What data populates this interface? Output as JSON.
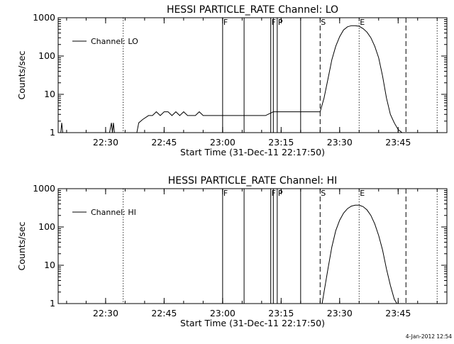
{
  "footer_stamp": "4-Jan-2012 12:54",
  "chart_data": [
    {
      "type": "line",
      "title": "HESSI PARTICLE_RATE Channel: LO",
      "xlabel": "Start Time (31-Dec-11 22:17:50)",
      "ylabel": "Counts/sec",
      "yscale": "log",
      "ylim": [
        1,
        1000
      ],
      "yticks": [
        "1",
        "10",
        "100",
        "1000"
      ],
      "xlim": [
        "22:17:50",
        "23:57:30"
      ],
      "xticks": [
        "22:30",
        "22:45",
        "23:00",
        "23:15",
        "23:30",
        "23:45"
      ],
      "grid": false,
      "legend": "upper-left",
      "series": [
        {
          "name": "Channel: LO",
          "x": [
            "22:18:30",
            "22:18:45",
            "22:19:00",
            "22:19:15",
            "22:19:35",
            "22:25:00",
            "22:28:00",
            "22:31:00",
            "22:31:30",
            "22:31:45",
            "22:32:00",
            "22:32:15",
            "22:32:45",
            "22:33:30",
            "22:35:00",
            "22:36:30",
            "22:38:00",
            "22:38:30",
            "22:39:30",
            "22:41:00",
            "22:42:00",
            "22:43:00",
            "22:44:00",
            "22:45:00",
            "22:46:00",
            "22:47:00",
            "22:48:00",
            "22:49:00",
            "22:50:00",
            "22:51:00",
            "22:52:00",
            "22:53:00",
            "22:54:00",
            "22:55:00",
            "22:56:00",
            "22:58:00",
            "23:00:00",
            "23:03:00",
            "23:05:00",
            "23:07:00",
            "23:09:00",
            "23:11:00",
            "23:13:00",
            "23:15:00",
            "23:17:00",
            "23:19:00",
            "23:21:00",
            "23:23:00",
            "23:25:00",
            "23:26:00",
            "23:27:00",
            "23:28:00",
            "23:29:00",
            "23:30:00",
            "23:31:00",
            "23:32:00",
            "23:33:00",
            "23:34:00",
            "23:35:00",
            "23:36:00",
            "23:37:00",
            "23:38:00",
            "23:39:00",
            "23:40:00",
            "23:41:00",
            "23:42:00",
            "23:43:00",
            "23:44:00",
            "23:45:00",
            "23:46:00",
            "23:47:00"
          ],
          "y": [
            1,
            1.8,
            1,
            1,
            1,
            1,
            1,
            1,
            1.8,
            1,
            1.8,
            1,
            1,
            1,
            1,
            1,
            1,
            1.8,
            2.2,
            2.8,
            2.8,
            3.5,
            2.8,
            3.5,
            3.5,
            2.8,
            3.5,
            2.8,
            3.5,
            2.8,
            2.8,
            2.8,
            3.5,
            2.8,
            2.8,
            2.8,
            2.8,
            2.8,
            2.8,
            2.8,
            2.8,
            2.8,
            3.5,
            3.5,
            3.5,
            3.5,
            3.5,
            3.5,
            3.5,
            8,
            25,
            80,
            180,
            320,
            480,
            580,
            620,
            620,
            600,
            520,
            420,
            300,
            180,
            90,
            30,
            8,
            3,
            1.8,
            1.2,
            1,
            1
          ]
        }
      ],
      "markers": [
        {
          "label": "F",
          "time": "23:00:00",
          "style": "solid"
        },
        {
          "label": "",
          "time": "23:05:30",
          "style": "solid"
        },
        {
          "label": "F",
          "time": "23:12:20",
          "style": "solid"
        },
        {
          "label": "",
          "time": "23:13:00",
          "style": "solid"
        },
        {
          "label": "P",
          "time": "23:14:00",
          "style": "solid"
        },
        {
          "label": "",
          "time": "23:20:00",
          "style": "solid"
        },
        {
          "label": "S",
          "time": "23:25:00",
          "style": "dashed"
        },
        {
          "label": "",
          "time": "23:47:00",
          "style": "dashed"
        },
        {
          "label": "",
          "time": "22:34:30",
          "style": "dotted"
        },
        {
          "label": "E",
          "time": "23:35:00",
          "style": "dotted"
        },
        {
          "label": "",
          "time": "23:55:00",
          "style": "dotted"
        }
      ]
    },
    {
      "type": "line",
      "title": "HESSI PARTICLE_RATE Channel: HI",
      "xlabel": "Start Time (31-Dec-11 22:17:50)",
      "ylabel": "Counts/sec",
      "yscale": "log",
      "ylim": [
        1,
        1000
      ],
      "yticks": [
        "1",
        "10",
        "100",
        "1000"
      ],
      "xlim": [
        "22:17:50",
        "23:57:30"
      ],
      "xticks": [
        "22:30",
        "22:45",
        "23:00",
        "23:15",
        "23:30",
        "23:45"
      ],
      "grid": false,
      "legend": "upper-left",
      "series": [
        {
          "name": "Channel: HI",
          "x": [
            "23:25:30",
            "23:26:00",
            "23:27:00",
            "23:28:00",
            "23:29:00",
            "23:30:00",
            "23:31:00",
            "23:32:00",
            "23:33:00",
            "23:34:00",
            "23:35:00",
            "23:36:00",
            "23:37:00",
            "23:38:00",
            "23:39:00",
            "23:40:00",
            "23:41:00",
            "23:42:00",
            "23:43:00",
            "23:44:00",
            "23:44:40"
          ],
          "y": [
            1,
            2,
            8,
            30,
            80,
            150,
            230,
            300,
            350,
            370,
            370,
            340,
            280,
            200,
            120,
            60,
            25,
            8,
            3,
            1.3,
            1
          ]
        }
      ],
      "markers": [
        {
          "label": "F",
          "time": "23:00:00",
          "style": "solid"
        },
        {
          "label": "",
          "time": "23:05:30",
          "style": "solid"
        },
        {
          "label": "F",
          "time": "23:12:20",
          "style": "solid"
        },
        {
          "label": "",
          "time": "23:13:00",
          "style": "solid"
        },
        {
          "label": "P",
          "time": "23:14:00",
          "style": "solid"
        },
        {
          "label": "",
          "time": "23:20:00",
          "style": "solid"
        },
        {
          "label": "S",
          "time": "23:25:00",
          "style": "dashed"
        },
        {
          "label": "",
          "time": "23:47:00",
          "style": "dashed"
        },
        {
          "label": "",
          "time": "22:34:30",
          "style": "dotted"
        },
        {
          "label": "E",
          "time": "23:35:00",
          "style": "dotted"
        },
        {
          "label": "",
          "time": "23:55:00",
          "style": "dotted"
        }
      ]
    }
  ]
}
